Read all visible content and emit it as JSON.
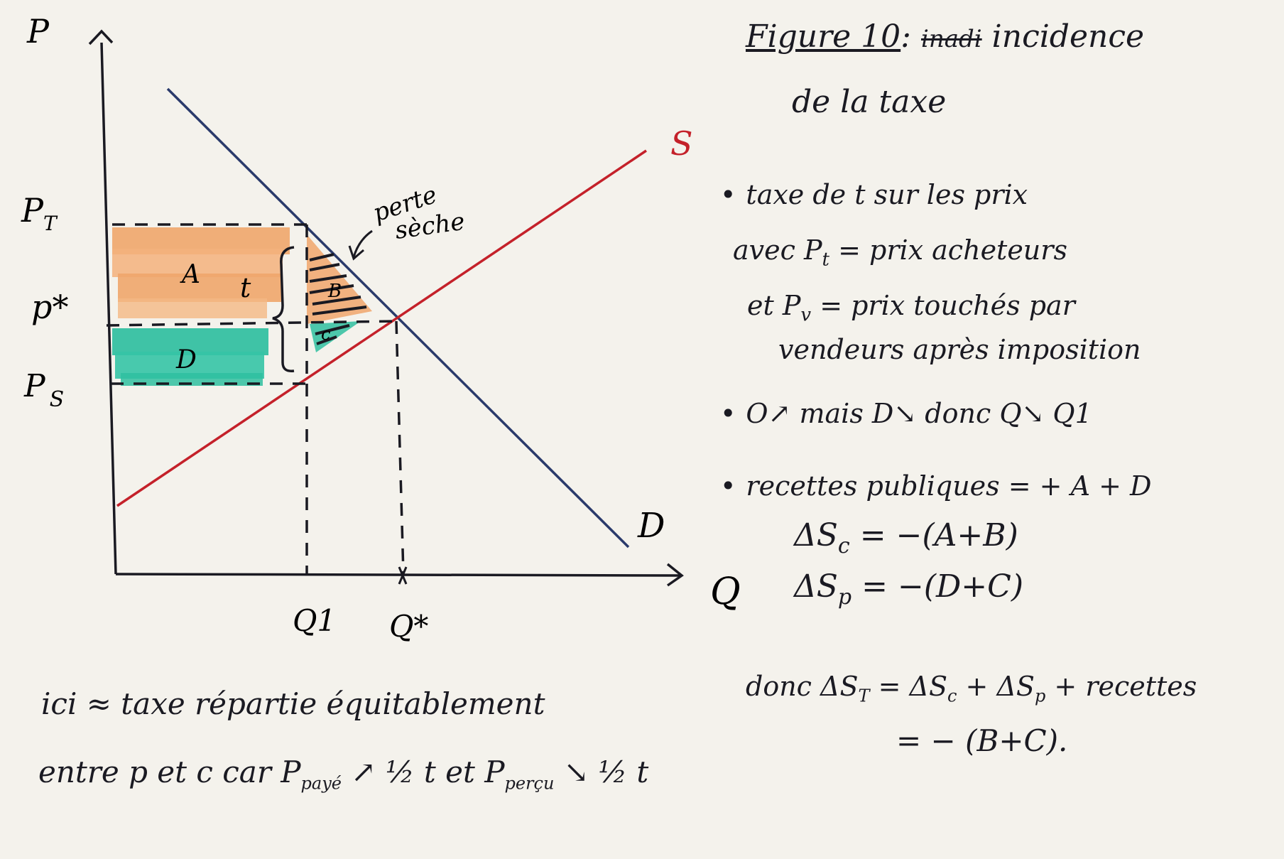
{
  "title": {
    "prefix": "Figure 10",
    "colon": ":",
    "crossed": "inadi",
    "line1": "incidence",
    "line2": "de la taxe"
  },
  "graph": {
    "axis_p": "P",
    "axis_q": "Q",
    "label_pt": "P",
    "label_pt_sub": "T",
    "label_pstar": "p*",
    "label_ps": "P",
    "label_ps_sub": "S",
    "label_s": "S",
    "label_d": "D",
    "label_q1": "Q1",
    "label_qstar": "Q*",
    "area_a": "A",
    "area_d": "D",
    "area_b": "B",
    "area_c": "c",
    "tax_t": "t",
    "dwl_line1": "perte",
    "dwl_line2": "sèche",
    "colors": {
      "demand": "#2a3a6b",
      "supply": "#c4212a",
      "area_a": "#f0a66c",
      "area_d": "#2fbfa0",
      "ink": "#1a1a22"
    }
  },
  "notes": {
    "n1": "taxe de t sur les prix",
    "n2a": "avec P",
    "n2sub": "t",
    "n2b": " = prix acheteurs",
    "n3a": "et P",
    "n3sub": "v",
    "n3b": " = prix touchés par",
    "n4": "vendeurs après imposition",
    "n5": "O↗ mais D↘ donc Q↘ Q1",
    "n6": "recettes publiques = + A + D",
    "n7a": "ΔS",
    "n7sub": "c",
    "n7b": " = −(A+B)",
    "n8a": "ΔS",
    "n8sub": "p",
    "n8b": " = −(D+C)",
    "n9a": "donc ΔS",
    "n9sub": "T",
    "n9b": " = ΔS",
    "n9sub2": "c",
    "n9c": " + ΔS",
    "n9sub3": "p",
    "n9d": " + recettes",
    "n10": "= − (B+C).",
    "bottom1": "ici ≈ taxe répartie équitablement",
    "bottom2a": "entre p et c car P",
    "bottom2sub": "payé",
    "bottom2b": " ↗ ½ t et P",
    "bottom2sub2": "perçu",
    "bottom2c": " ↘ ½ t"
  }
}
